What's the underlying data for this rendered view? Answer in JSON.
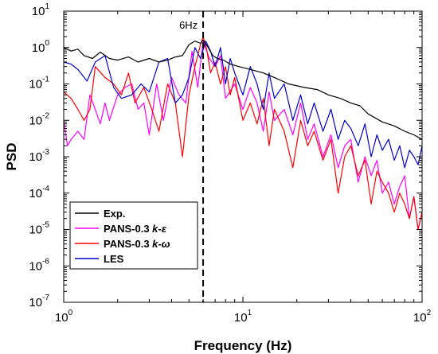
{
  "chart_data": {
    "type": "line",
    "xlabel": "Frequency (Hz)",
    "ylabel": "PSD",
    "xscale": "log",
    "yscale": "log",
    "xlim": [
      1,
      100
    ],
    "ylim": [
      1e-07,
      10
    ],
    "x_ticks": [
      {
        "base": "10",
        "exp": "0",
        "value": 1
      },
      {
        "base": "10",
        "exp": "1",
        "value": 10
      },
      {
        "base": "10",
        "exp": "2",
        "value": 100
      }
    ],
    "y_ticks": [
      {
        "base": "10",
        "exp": "-7",
        "value": 1e-07
      },
      {
        "base": "10",
        "exp": "-6",
        "value": 1e-06
      },
      {
        "base": "10",
        "exp": "-5",
        "value": 1e-05
      },
      {
        "base": "10",
        "exp": "-4",
        "value": 0.0001
      },
      {
        "base": "10",
        "exp": "-3",
        "value": 0.001
      },
      {
        "base": "10",
        "exp": "-2",
        "value": 0.01
      },
      {
        "base": "10",
        "exp": "-1",
        "value": 0.1
      },
      {
        "base": "10",
        "exp": "0",
        "value": 1
      },
      {
        "base": "10",
        "exp": "1",
        "value": 10
      }
    ],
    "grid": false,
    "legend_position": "bottom-left",
    "annotation": {
      "text": "6Hz",
      "x": 6,
      "line_style": "dashed"
    },
    "series": [
      {
        "name": "Exp.",
        "legend_base": "Exp.",
        "legend_italic": "",
        "color": "#000000",
        "x": [
          1.0,
          1.1,
          1.2,
          1.3,
          1.45,
          1.6,
          1.8,
          2.0,
          2.3,
          2.6,
          3.0,
          3.4,
          3.8,
          4.2,
          4.6,
          5.0,
          5.4,
          5.8,
          6.0,
          6.4,
          6.8,
          7.2,
          7.8,
          8.5,
          9.5,
          11,
          13,
          15,
          18,
          22,
          26,
          30,
          35,
          40,
          45,
          50,
          60,
          70,
          80,
          90,
          100
        ],
        "y": [
          1.0,
          0.8,
          0.9,
          0.6,
          0.5,
          0.75,
          0.5,
          0.45,
          0.55,
          0.4,
          0.5,
          0.4,
          0.45,
          0.55,
          0.6,
          1.2,
          1.5,
          1.3,
          1.6,
          1.0,
          0.6,
          0.5,
          0.45,
          0.35,
          0.3,
          0.25,
          0.2,
          0.15,
          0.1,
          0.08,
          0.07,
          0.05,
          0.04,
          0.03,
          0.025,
          0.015,
          0.009,
          0.007,
          0.005,
          0.004,
          0.003
        ]
      },
      {
        "name": "PANS-0.3 k-ε",
        "legend_base": "PANS-0.3 ",
        "legend_italic": "k-ε",
        "color": "#ff00ff",
        "x": [
          1.0,
          1.05,
          1.1,
          1.2,
          1.3,
          1.4,
          1.5,
          1.6,
          1.7,
          1.8,
          2.0,
          2.2,
          2.4,
          2.6,
          2.8,
          3.0,
          3.3,
          3.6,
          4.0,
          4.4,
          4.8,
          5.2,
          5.6,
          6.0,
          6.5,
          7.0,
          7.5,
          8,
          9,
          10,
          11,
          12,
          13,
          14,
          15,
          17,
          19,
          21,
          23,
          25,
          28,
          31,
          34,
          37,
          40,
          44,
          48,
          52,
          56,
          60,
          65,
          70,
          75,
          80,
          85,
          90,
          95,
          100
        ],
        "y": [
          0.01,
          0.002,
          0.003,
          0.005,
          0.003,
          0.05,
          0.02,
          0.008,
          0.03,
          0.01,
          0.05,
          0.08,
          0.1,
          0.02,
          0.03,
          0.004,
          0.1,
          0.01,
          0.15,
          0.05,
          0.03,
          0.8,
          0.08,
          1.5,
          0.5,
          0.3,
          0.6,
          0.04,
          0.1,
          0.02,
          0.08,
          0.03,
          0.005,
          0.06,
          0.01,
          0.02,
          0.004,
          0.03,
          0.003,
          0.008,
          0.001,
          0.004,
          0.0005,
          0.002,
          0.003,
          0.0002,
          0.001,
          0.0003,
          0.0008,
          0.0001,
          0.0002,
          5e-05,
          0.00015,
          0.0003,
          2e-05,
          8e-05,
          1e-05,
          3e-05
        ]
      },
      {
        "name": "PANS-0.3 k-ω",
        "legend_base": "PANS-0.3 ",
        "legend_italic": "k-ω",
        "color": "#ff0000",
        "x": [
          1.0,
          1.1,
          1.2,
          1.3,
          1.4,
          1.5,
          1.7,
          1.9,
          2.1,
          2.3,
          2.5,
          2.8,
          3.1,
          3.4,
          3.8,
          4.2,
          4.6,
          5.0,
          5.4,
          5.8,
          6.0,
          6.3,
          6.6,
          7.0,
          7.5,
          8,
          8.5,
          9,
          10,
          11,
          12,
          13,
          14,
          15,
          17,
          19,
          21,
          23,
          25,
          28,
          31,
          34,
          37,
          40,
          44,
          48,
          52,
          56,
          60,
          65,
          70,
          75,
          80,
          85,
          90,
          95,
          100
        ],
        "y": [
          0.06,
          0.04,
          0.02,
          0.01,
          0.02,
          0.3,
          0.15,
          0.1,
          0.05,
          0.2,
          0.03,
          0.08,
          0.02,
          0.005,
          0.1,
          0.03,
          0.001,
          0.05,
          0.3,
          1.2,
          2.0,
          0.8,
          0.2,
          0.4,
          0.1,
          0.3,
          0.05,
          0.15,
          0.01,
          0.03,
          0.008,
          0.04,
          0.002,
          0.02,
          0.005,
          0.0005,
          0.01,
          0.002,
          0.005,
          0.0008,
          0.003,
          0.0001,
          0.001,
          0.002,
          0.0003,
          0.0008,
          5e-05,
          0.0004,
          0.0002,
          0.0001,
          3e-05,
          0.0001,
          5e-05,
          2e-05,
          8e-05,
          1e-05,
          3e-05
        ]
      },
      {
        "name": "LES",
        "legend_base": "LES",
        "legend_italic": "",
        "color": "#0000cc",
        "x": [
          1.0,
          1.1,
          1.2,
          1.35,
          1.5,
          1.7,
          1.9,
          2.1,
          2.4,
          2.7,
          3.0,
          3.4,
          3.8,
          4.2,
          4.6,
          5.0,
          5.4,
          5.8,
          6.2,
          6.6,
          7.0,
          7.5,
          8,
          8.5,
          9,
          10,
          11,
          12,
          13,
          14,
          15,
          17,
          19,
          21,
          23,
          25,
          28,
          31,
          34,
          37,
          40,
          44,
          48,
          52,
          56,
          60,
          65,
          70,
          75,
          80,
          85,
          90,
          95,
          100
        ],
        "y": [
          0.4,
          0.35,
          0.25,
          0.12,
          0.4,
          0.6,
          0.08,
          0.04,
          0.05,
          0.1,
          0.06,
          0.4,
          0.5,
          0.03,
          0.05,
          0.15,
          1.0,
          0.5,
          1.5,
          0.8,
          0.3,
          1.0,
          0.1,
          0.5,
          0.2,
          0.05,
          0.3,
          0.1,
          0.02,
          0.2,
          0.04,
          0.1,
          0.01,
          0.05,
          0.008,
          0.03,
          0.005,
          0.02,
          0.003,
          0.01,
          0.006,
          0.002,
          0.008,
          0.001,
          0.004,
          0.0015,
          0.003,
          0.0008,
          0.002,
          0.0005,
          0.0015,
          0.001,
          0.0006,
          0.002
        ]
      }
    ]
  }
}
